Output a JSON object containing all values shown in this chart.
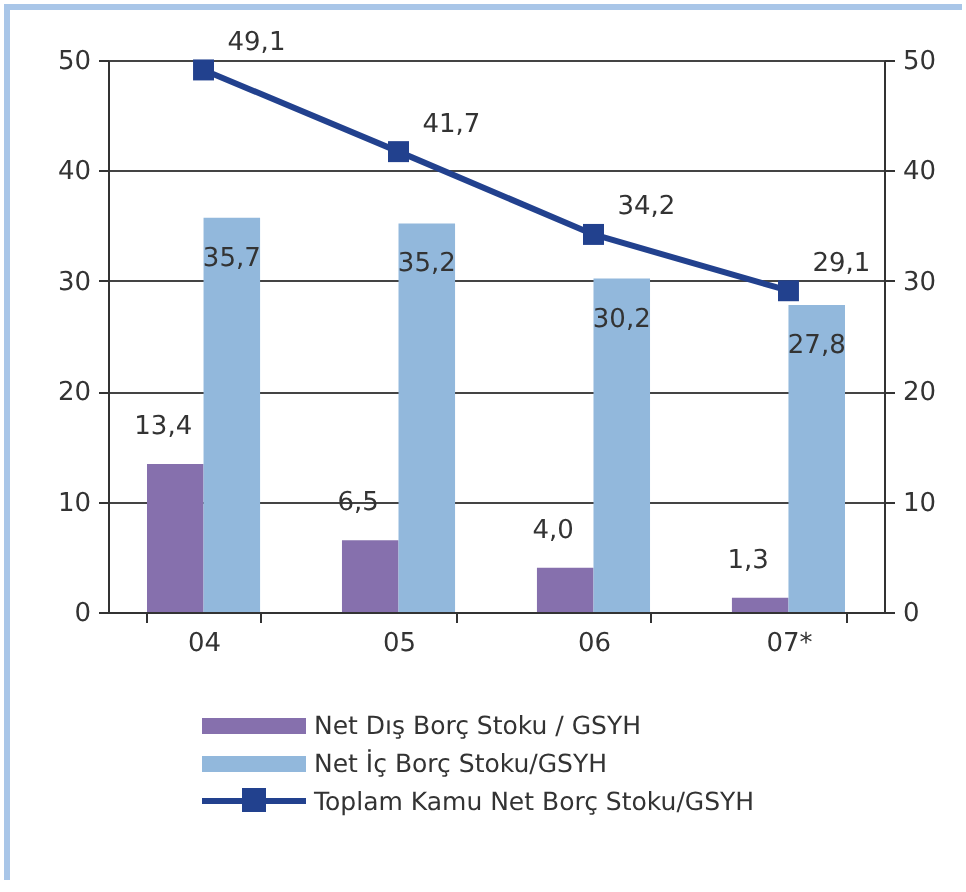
{
  "chart_data": {
    "type": "bar",
    "categories": [
      "04",
      "05",
      "06",
      "07*"
    ],
    "series": [
      {
        "name": "Net Dış Borç Stoku / GSYH",
        "color": "#8670ad",
        "values": [
          13.4,
          6.5,
          4.0,
          1.3
        ],
        "value_labels": [
          "13,4",
          "6,5",
          "4,0",
          "1,3"
        ]
      },
      {
        "name": "Net İç Borç Stoku/GSYH",
        "color": "#92b8dc",
        "values": [
          35.7,
          35.2,
          30.2,
          27.8
        ],
        "value_labels": [
          "35,7",
          "35,2",
          "30,2",
          "27,8"
        ]
      },
      {
        "name": "Toplam Kamu Net Borç Stoku/GSYH",
        "type": "line",
        "axis": "y2",
        "color": "#22418e",
        "values": [
          49.1,
          41.7,
          34.2,
          29.1
        ],
        "value_labels": [
          "49,1",
          "41,7",
          "34,2",
          "29,1"
        ],
        "marker": "square"
      }
    ],
    "ylim": [
      0,
      50
    ],
    "yticks": [
      0,
      10,
      20,
      30,
      40,
      50
    ],
    "y2lim": [
      0,
      50
    ],
    "y2ticks": [
      0,
      10,
      20,
      30,
      40,
      50
    ],
    "grid": "y",
    "legend": "bottom",
    "line_style": "solid"
  }
}
